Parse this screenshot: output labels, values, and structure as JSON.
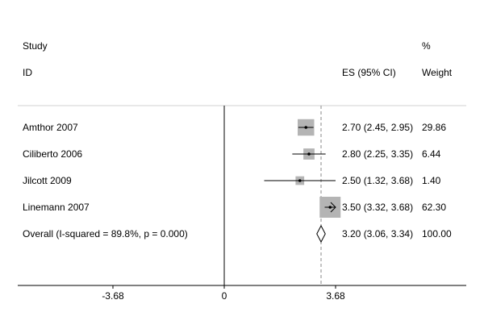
{
  "chart_data": {
    "type": "forest",
    "header": {
      "study_line1": "Study",
      "study_line2": "ID",
      "es_label": "ES (95% CI)",
      "weight_line1": "%",
      "weight_line2": "Weight"
    },
    "studies": [
      {
        "name": "Amthor 2007",
        "es": 2.7,
        "lo": 2.45,
        "hi": 2.95,
        "ci_text": "2.70 (2.45, 2.95)",
        "weight": 29.86,
        "weight_text": "29.86"
      },
      {
        "name": "Ciliberto 2006",
        "es": 2.8,
        "lo": 2.25,
        "hi": 3.35,
        "ci_text": "2.80 (2.25, 3.35)",
        "weight": 6.44,
        "weight_text": "6.44"
      },
      {
        "name": "Jilcott 2009",
        "es": 2.5,
        "lo": 1.32,
        "hi": 3.68,
        "ci_text": "2.50 (1.32, 3.68)",
        "weight": 1.4,
        "weight_text": "1.40"
      },
      {
        "name": "Linemann 2007",
        "es": 3.5,
        "lo": 3.32,
        "hi": 3.68,
        "ci_text": "3.50 (3.32, 3.68)",
        "weight": 62.3,
        "weight_text": "62.30",
        "clipped": true
      }
    ],
    "overall": {
      "name": "Overall  (I-squared = 89.8%, p = 0.000)",
      "es": 3.2,
      "lo": 3.06,
      "hi": 3.34,
      "ci_text": "3.20 (3.06, 3.34)",
      "weight_text": "100.00"
    },
    "null_value": 0,
    "xlim": [
      -3.68,
      3.68
    ],
    "ticks": [
      {
        "value": -3.68,
        "label": "-3.68"
      },
      {
        "value": 0,
        "label": "0"
      },
      {
        "value": 3.68,
        "label": "3.68"
      }
    ],
    "colors": {
      "box": "#b4b4b4",
      "line": "#000000",
      "divider": "#d0d0d0",
      "dashed": "#888888"
    }
  }
}
